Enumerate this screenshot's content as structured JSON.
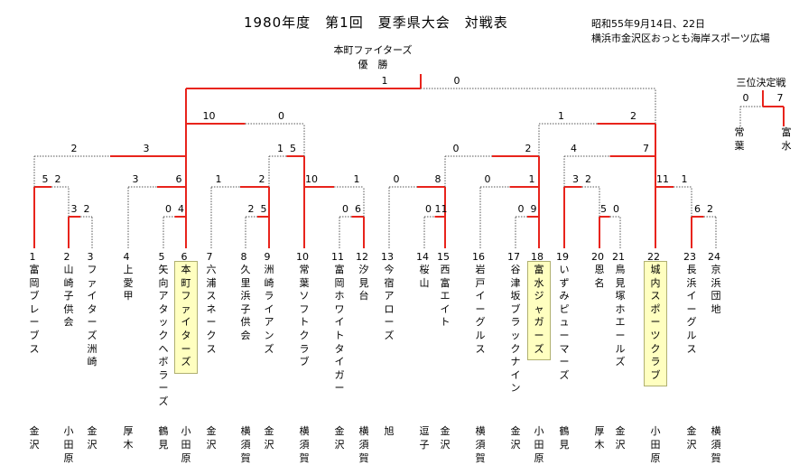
{
  "title": "1980年度　第1回　夏季県大会　対戦表",
  "date": "昭和55年9月14日、22日",
  "venue": "横浜市金沢区おっとも海岸スポーツ広場",
  "champion_team": "本町ファイターズ",
  "champion_label": "優　勝",
  "third_place": {
    "label": "三位決定戦",
    "left_score": "0",
    "right_score": "7",
    "left_team": "常葉",
    "right_team": "富水"
  },
  "colors": {
    "winner_line": "#e8241c",
    "loser_line": "#555555",
    "highlight": "#ffffc0"
  },
  "teams": [
    {
      "no": "1",
      "name": "富岡ブレーブス",
      "loc": "金沢"
    },
    {
      "no": "2",
      "name": "山崎子供会",
      "loc": "小田原"
    },
    {
      "no": "3",
      "name": "ファイターズ洲崎",
      "loc": "金沢"
    },
    {
      "no": "4",
      "name": "上愛甲",
      "loc": "厚木"
    },
    {
      "no": "5",
      "name": "矢向アタックヘボラーズ",
      "loc": "鶴見"
    },
    {
      "no": "6",
      "name": "本町ファイターズ",
      "loc": "小田原",
      "highlight": true
    },
    {
      "no": "7",
      "name": "六浦スネークス",
      "loc": "金沢"
    },
    {
      "no": "8",
      "name": "久里浜子供会",
      "loc": "横須賀"
    },
    {
      "no": "9",
      "name": "洲崎ライアンズ",
      "loc": "金沢"
    },
    {
      "no": "10",
      "name": "常葉ソフトクラブ",
      "loc": "横須賀"
    },
    {
      "no": "11",
      "name": "富岡ホワイトタイガー",
      "loc": "金沢"
    },
    {
      "no": "12",
      "name": "汐見台",
      "loc": "横須賀"
    },
    {
      "no": "13",
      "name": "今宿アローズ",
      "loc": "旭"
    },
    {
      "no": "14",
      "name": "桜　山",
      "loc": "逗子"
    },
    {
      "no": "15",
      "name": "西富エイト",
      "loc": "金沢"
    },
    {
      "no": "16",
      "name": "岩戸イーグルス",
      "loc": "横須賀"
    },
    {
      "no": "17",
      "name": "谷津坂ブラックナイン",
      "loc": "金沢"
    },
    {
      "no": "18",
      "name": "富水ジャガーズ",
      "loc": "小田原",
      "highlight": true
    },
    {
      "no": "19",
      "name": "いずみピューマーズ",
      "loc": "鶴見"
    },
    {
      "no": "20",
      "name": "恩　名",
      "loc": "厚木"
    },
    {
      "no": "21",
      "name": "鳥見塚ホエールズ",
      "loc": "金沢"
    },
    {
      "no": "22",
      "name": "城内スポーツクラブ",
      "loc": "小田原",
      "highlight": true
    },
    {
      "no": "23",
      "name": "長浜イーグルス",
      "loc": "金沢"
    },
    {
      "no": "24",
      "name": "京浜団地",
      "loc": "横須賀"
    }
  ],
  "scores": [
    {
      "id": "m2-3",
      "left": "3",
      "right": "2"
    },
    {
      "id": "m5-6",
      "left": "0",
      "right": "4"
    },
    {
      "id": "m8-9",
      "left": "2",
      "right": "5"
    },
    {
      "id": "m11-12",
      "left": "0",
      "right": "6"
    },
    {
      "id": "m14-15",
      "left": "0",
      "right": "11"
    },
    {
      "id": "m17-18",
      "left": "0",
      "right": "9"
    },
    {
      "id": "m20-21",
      "left": "5",
      "right": "0"
    },
    {
      "id": "m23-24",
      "left": "6",
      "right": "2"
    },
    {
      "id": "r2-1",
      "left": "5",
      "right": "2"
    },
    {
      "id": "r2-2",
      "left": "3",
      "right": "6"
    },
    {
      "id": "r2-3",
      "left": "1",
      "right": "2"
    },
    {
      "id": "r2-4",
      "left": "10",
      "right": "1"
    },
    {
      "id": "r2-5",
      "left": "0",
      "right": "8"
    },
    {
      "id": "r2-6",
      "left": "0",
      "right": "1"
    },
    {
      "id": "r2-7",
      "left": "3",
      "right": "2"
    },
    {
      "id": "r2-8",
      "left": "11",
      "right": "1"
    },
    {
      "id": "qf-1",
      "left": "2",
      "right": "3"
    },
    {
      "id": "qf-2",
      "left": "1",
      "right": "5"
    },
    {
      "id": "qf-3",
      "left": "0",
      "right": "2"
    },
    {
      "id": "qf-4",
      "left": "4",
      "right": "7"
    },
    {
      "id": "sf-1",
      "left": "10",
      "right": "0"
    },
    {
      "id": "sf-2",
      "left": "1",
      "right": "2"
    },
    {
      "id": "final",
      "left": "1",
      "right": "0"
    }
  ]
}
